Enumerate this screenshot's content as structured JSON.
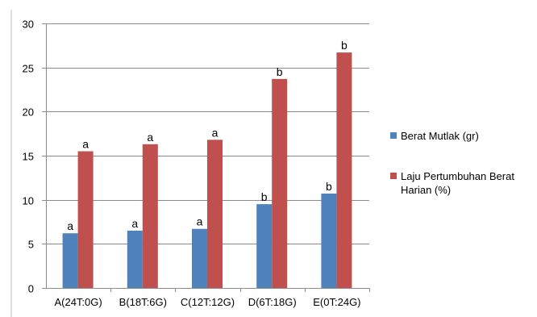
{
  "chart_data": {
    "type": "bar",
    "title": "",
    "xlabel": "",
    "ylabel": "",
    "ylim": [
      0,
      30
    ],
    "yticks": [
      "0",
      "5",
      "10",
      "15",
      "20",
      "25",
      "30"
    ],
    "grid": true,
    "legend_position": "right",
    "categories": [
      "A(24T:0G)",
      "B(18T:6G)",
      "C(12T:12G)",
      "D(6T:18G)",
      "E(0T:24G)"
    ],
    "series": [
      {
        "name": "Berat Mutlak (gr)",
        "color": "#4f81bd",
        "values": [
          6.2,
          6.5,
          6.7,
          9.5,
          10.7
        ],
        "labels": [
          "a",
          "a",
          "a",
          "b",
          "b"
        ]
      },
      {
        "name": "Laju Pertumbuhan Berat Harian (%)",
        "color": "#c0504d",
        "values": [
          15.5,
          16.3,
          16.8,
          23.7,
          26.7
        ],
        "labels": [
          "a",
          "a",
          "a",
          "b",
          "b"
        ]
      }
    ]
  }
}
